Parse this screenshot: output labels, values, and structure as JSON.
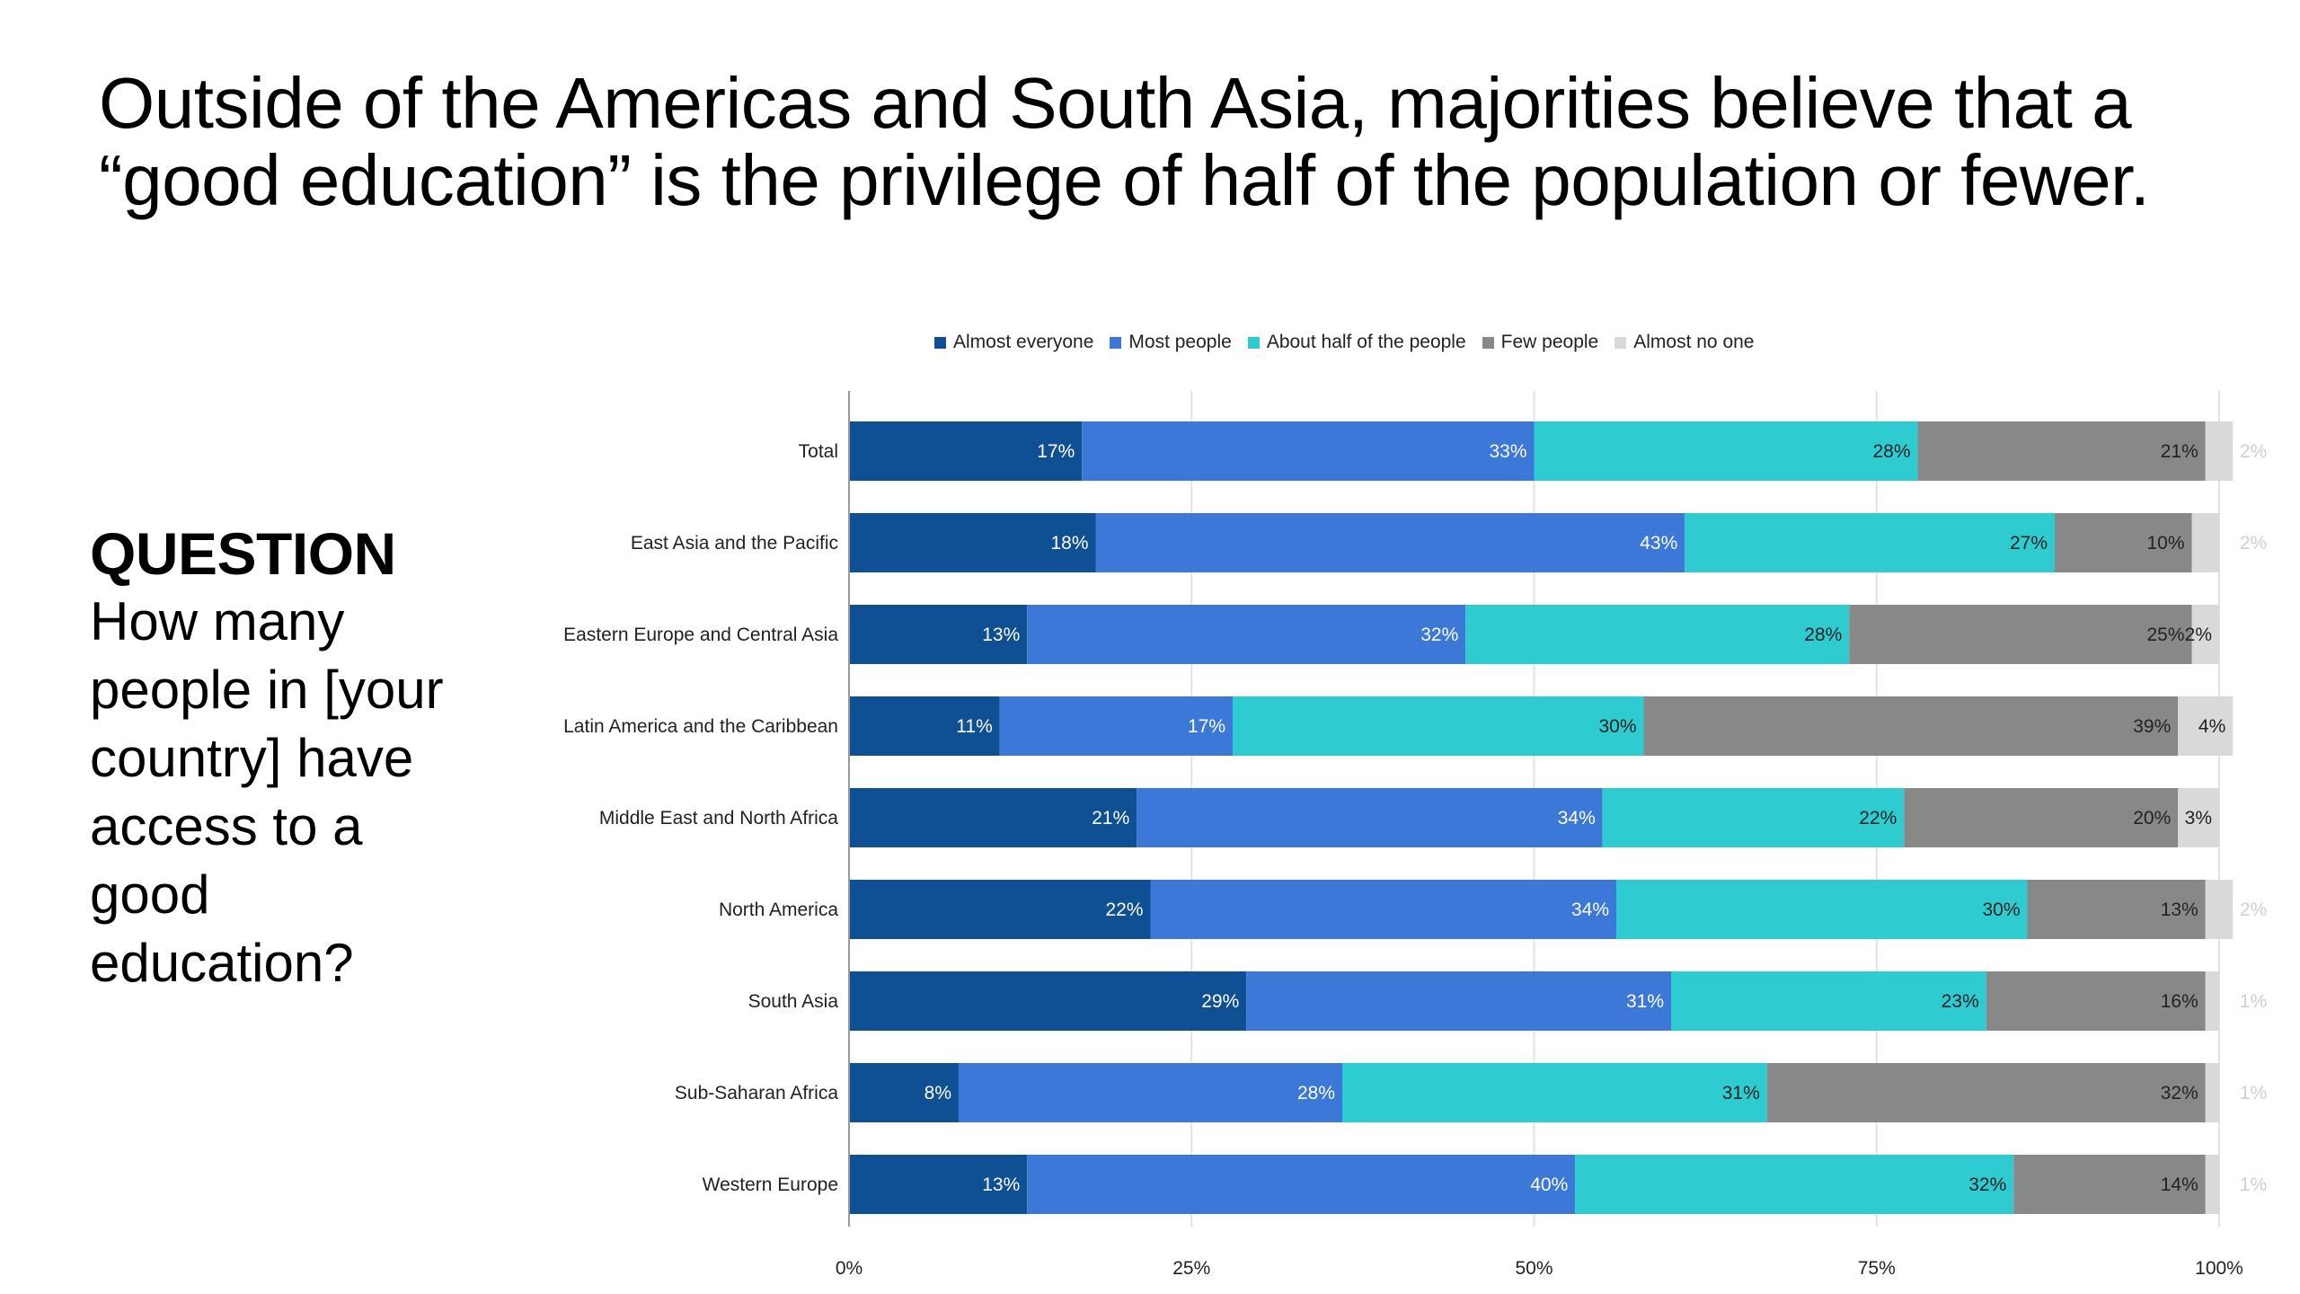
{
  "slide": {
    "title_lines": [
      "Outside of the Americas and South Asia, majorities believe that a",
      "“good education” is the privilege of half of the population or fewer."
    ],
    "question_heading": "QUESTION",
    "question_lines": [
      "How many",
      "people in [your",
      "country] have",
      "access to a",
      "good",
      "education?"
    ]
  },
  "colors": {
    "almost_everyone": "#0f4f94",
    "most_people": "#3c78d8",
    "about_half": "#2ecbd1",
    "few_people": "#888888",
    "almost_no_one": "#d9d9d9",
    "outside_label": "#d0d0d0"
  },
  "chart_data": {
    "type": "bar",
    "orientation": "horizontal",
    "stacked": "percent",
    "title": "",
    "xlabel": "",
    "ylabel": "",
    "xlim": [
      0,
      100
    ],
    "x_ticks": [
      "0%",
      "25%",
      "50%",
      "75%",
      "100%"
    ],
    "x_tick_values": [
      0,
      25,
      50,
      75,
      100
    ],
    "grid": true,
    "legend_position": "top",
    "categories": [
      "Total",
      "East Asia and the Pacific",
      "Eastern Europe and Central Asia",
      "Latin America and the Caribbean",
      "Middle East and North Africa",
      "North America",
      "South Asia",
      "Sub-Saharan Africa",
      "Western Europe"
    ],
    "series": [
      {
        "key": "almost_everyone",
        "name": "Almost everyone",
        "values": [
          17,
          18,
          13,
          11,
          21,
          22,
          29,
          8,
          13
        ]
      },
      {
        "key": "most_people",
        "name": "Most people",
        "values": [
          33,
          43,
          32,
          17,
          34,
          34,
          31,
          28,
          40
        ]
      },
      {
        "key": "about_half",
        "name": "About half of the people",
        "values": [
          28,
          27,
          28,
          30,
          22,
          30,
          23,
          31,
          32
        ]
      },
      {
        "key": "few_people",
        "name": "Few people",
        "values": [
          21,
          10,
          25,
          39,
          20,
          13,
          16,
          32,
          14
        ]
      },
      {
        "key": "almost_no_one",
        "name": "Almost no one",
        "values": [
          2,
          2,
          2,
          4,
          3,
          2,
          1,
          1,
          1
        ]
      }
    ],
    "label_outside_bar": [
      [
        false,
        false,
        false,
        false,
        true
      ],
      [
        false,
        false,
        false,
        false,
        true
      ],
      [
        false,
        false,
        false,
        false,
        false
      ],
      [
        false,
        false,
        false,
        false,
        false
      ],
      [
        false,
        false,
        false,
        false,
        false
      ],
      [
        false,
        false,
        false,
        false,
        true
      ],
      [
        false,
        false,
        false,
        false,
        true
      ],
      [
        false,
        false,
        false,
        false,
        true
      ],
      [
        false,
        false,
        false,
        false,
        true
      ]
    ]
  }
}
